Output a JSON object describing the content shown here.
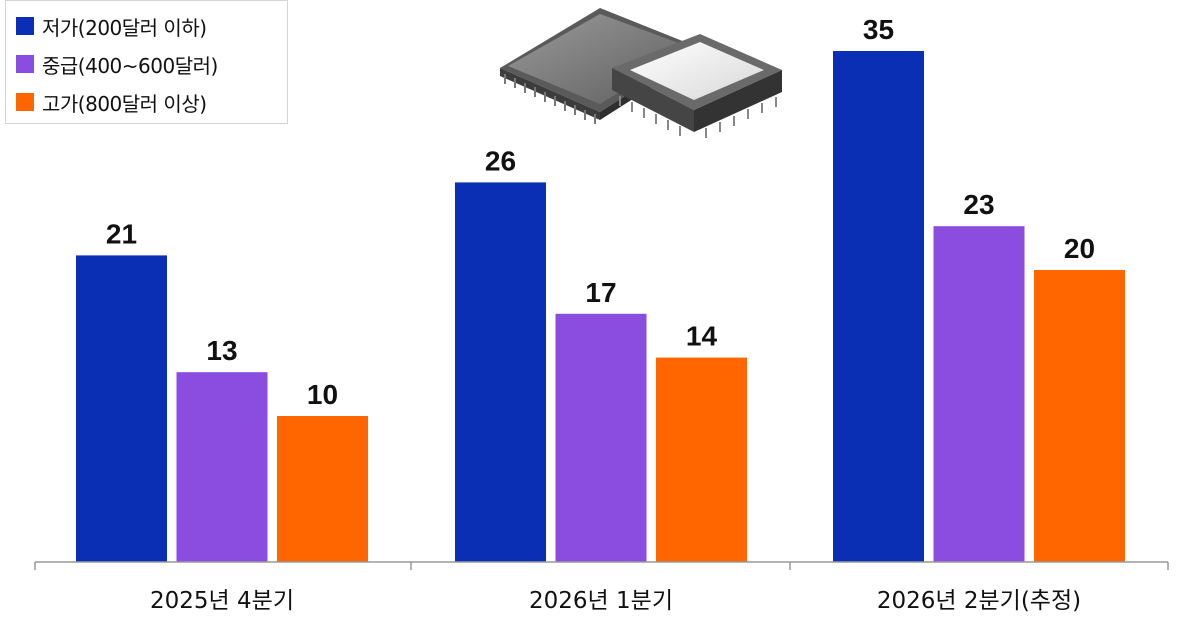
{
  "chart_data": {
    "type": "bar",
    "categories": [
      "2025년 4분기",
      "2026년 1분기",
      "2026년 2분기(추정)"
    ],
    "series": [
      {
        "name": "저가(200달러 이하)",
        "color": "#0a2fb5",
        "values": [
          21,
          26,
          35
        ]
      },
      {
        "name": "중급(400~600달러)",
        "color": "#8a4de0",
        "values": [
          13,
          17,
          23
        ]
      },
      {
        "name": "고가(800달러 이상)",
        "color": "#ff6600",
        "values": [
          10,
          14,
          20
        ]
      }
    ],
    "legend_position": "top-left",
    "grid": false,
    "ylim": [
      0,
      35
    ]
  },
  "decoration": {
    "icon": "cpu-chip-icon"
  }
}
